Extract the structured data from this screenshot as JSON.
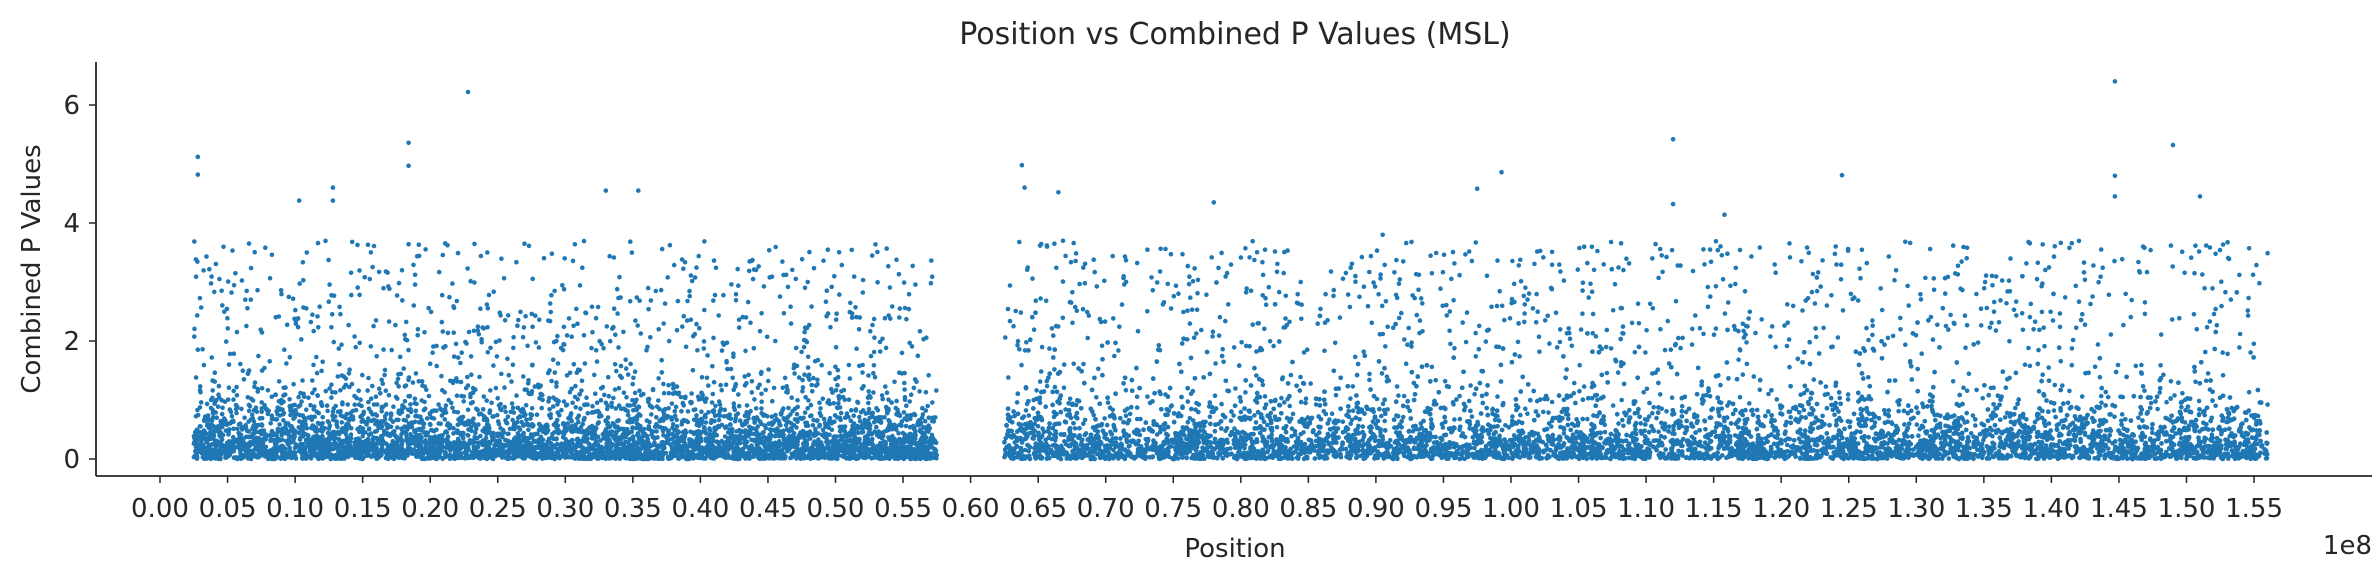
{
  "chart_data": {
    "type": "scatter",
    "title": "Position vs Combined P Values (MSL)",
    "xlabel": "Position",
    "ylabel": "Combined P Values",
    "x_offset_label": "1e8",
    "xlim": [
      0.0,
      1.6
    ],
    "ylim": [
      -0.3,
      6.7
    ],
    "x_ticks": [
      0.0,
      0.05,
      0.1,
      0.15,
      0.2,
      0.25,
      0.3,
      0.35,
      0.4,
      0.45,
      0.5,
      0.55,
      0.6,
      0.65,
      0.7,
      0.75,
      0.8,
      0.85,
      0.9,
      0.95,
      1.0,
      1.05,
      1.1,
      1.15,
      1.2,
      1.25,
      1.3,
      1.35,
      1.4,
      1.45,
      1.5,
      1.55
    ],
    "x_tick_labels": [
      "0.00",
      "0.05",
      "0.10",
      "0.15",
      "0.20",
      "0.25",
      "0.30",
      "0.35",
      "0.40",
      "0.45",
      "0.50",
      "0.55",
      "0.60",
      "0.65",
      "0.70",
      "0.75",
      "0.80",
      "0.85",
      "0.90",
      "0.95",
      "1.00",
      "1.05",
      "1.10",
      "1.15",
      "1.20",
      "1.25",
      "1.30",
      "1.35",
      "1.40",
      "1.45",
      "1.50",
      "1.55"
    ],
    "y_ticks": [
      0,
      2,
      4,
      6
    ],
    "y_tick_labels": [
      "0",
      "2",
      "4",
      "6"
    ],
    "grid": false,
    "marker_color": "#1f77b4",
    "data_regions": [
      {
        "x_start": 0.025,
        "x_end": 0.575
      },
      {
        "x_start": 0.625,
        "x_end": 1.56
      }
    ],
    "notable_points": [
      {
        "x": 0.028,
        "y": 5.12
      },
      {
        "x": 0.028,
        "y": 4.82
      },
      {
        "x": 0.103,
        "y": 4.38
      },
      {
        "x": 0.128,
        "y": 4.6
      },
      {
        "x": 0.128,
        "y": 4.38
      },
      {
        "x": 0.184,
        "y": 5.36
      },
      {
        "x": 0.184,
        "y": 4.97
      },
      {
        "x": 0.228,
        "y": 6.22
      },
      {
        "x": 0.33,
        "y": 4.55
      },
      {
        "x": 0.354,
        "y": 4.55
      },
      {
        "x": 0.638,
        "y": 4.98
      },
      {
        "x": 0.64,
        "y": 4.6
      },
      {
        "x": 0.665,
        "y": 4.52
      },
      {
        "x": 0.78,
        "y": 4.35
      },
      {
        "x": 0.905,
        "y": 3.8
      },
      {
        "x": 0.975,
        "y": 4.58
      },
      {
        "x": 0.993,
        "y": 4.86
      },
      {
        "x": 1.12,
        "y": 5.42
      },
      {
        "x": 1.12,
        "y": 4.32
      },
      {
        "x": 1.158,
        "y": 4.14
      },
      {
        "x": 1.245,
        "y": 4.81
      },
      {
        "x": 1.447,
        "y": 6.4
      },
      {
        "x": 1.447,
        "y": 4.8
      },
      {
        "x": 1.447,
        "y": 4.45
      },
      {
        "x": 1.49,
        "y": 5.32
      },
      {
        "x": 1.51,
        "y": 4.45
      }
    ]
  }
}
